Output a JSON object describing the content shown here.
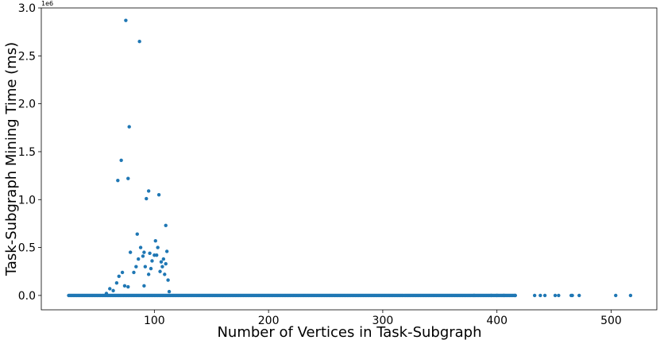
{
  "chart_data": {
    "type": "scatter",
    "title": "",
    "xlabel": "Number of Vertices in Task-Subgraph",
    "ylabel": "Task-Subgraph Mining Time (ms)",
    "y_offset_label": "1e6",
    "xlim": [
      1,
      540
    ],
    "ylim": [
      -0.15,
      3.0
    ],
    "y_scale_note": "values in units of 1e6 ms",
    "grid": false,
    "marker_color": "#1f77b4",
    "x_ticks": [
      100,
      200,
      300,
      400,
      500
    ],
    "x_tick_labels": [
      "100",
      "200",
      "300",
      "400",
      "500"
    ],
    "y_ticks": [
      0.0,
      0.5,
      1.0,
      1.5,
      2.0,
      2.5,
      3.0
    ],
    "y_tick_labels": [
      "0.0",
      "0.5",
      "1.0",
      "1.5",
      "2.0",
      "2.5",
      "3.0"
    ],
    "series": [
      {
        "baseline_x_range": [
          25,
          416
        ],
        "baseline_y": 0.0,
        "points": [
          [
            75,
            2.87
          ],
          [
            87,
            2.65
          ],
          [
            78,
            1.76
          ],
          [
            71,
            1.41
          ],
          [
            77,
            1.22
          ],
          [
            68,
            1.2
          ],
          [
            95,
            1.09
          ],
          [
            93,
            1.01
          ],
          [
            104,
            1.05
          ],
          [
            110,
            0.73
          ],
          [
            85,
            0.64
          ],
          [
            101,
            0.57
          ],
          [
            88,
            0.5
          ],
          [
            103,
            0.5
          ],
          [
            79,
            0.45
          ],
          [
            91,
            0.45
          ],
          [
            111,
            0.46
          ],
          [
            96,
            0.44
          ],
          [
            100,
            0.42
          ],
          [
            102,
            0.42
          ],
          [
            90,
            0.41
          ],
          [
            86,
            0.38
          ],
          [
            108,
            0.38
          ],
          [
            98,
            0.36
          ],
          [
            106,
            0.35
          ],
          [
            110,
            0.33
          ],
          [
            84,
            0.3
          ],
          [
            92,
            0.3
          ],
          [
            107,
            0.3
          ],
          [
            97,
            0.28
          ],
          [
            105,
            0.25
          ],
          [
            82,
            0.24
          ],
          [
            95,
            0.22
          ],
          [
            109,
            0.22
          ],
          [
            72,
            0.24
          ],
          [
            69,
            0.2
          ],
          [
            112,
            0.16
          ],
          [
            67,
            0.13
          ],
          [
            61,
            0.07
          ],
          [
            74,
            0.1
          ],
          [
            77,
            0.09
          ],
          [
            91,
            0.1
          ],
          [
            64,
            0.05
          ],
          [
            58,
            0.02
          ],
          [
            113,
            0.04
          ],
          [
            380,
            0.0
          ],
          [
            395,
            0.0
          ],
          [
            400,
            0.0
          ],
          [
            406,
            0.0
          ],
          [
            416,
            0.0
          ],
          [
            433,
            0.0
          ],
          [
            438,
            0.0
          ],
          [
            442,
            0.0
          ],
          [
            451,
            0.0
          ],
          [
            454,
            0.0
          ],
          [
            465,
            0.0
          ],
          [
            466,
            0.0
          ],
          [
            472,
            0.0
          ],
          [
            504,
            0.0
          ],
          [
            517,
            0.0
          ]
        ]
      }
    ]
  }
}
